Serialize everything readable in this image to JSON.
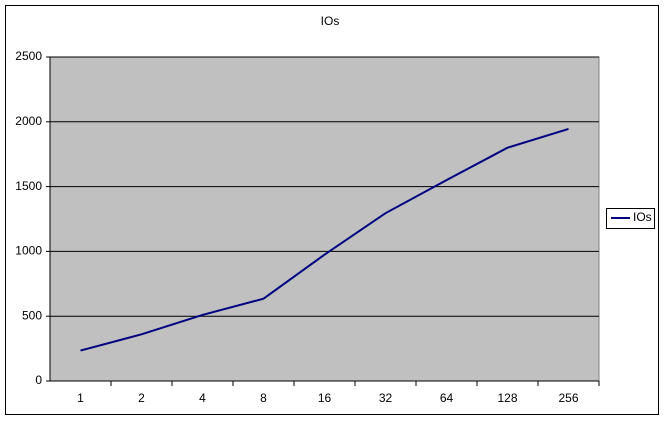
{
  "chart_data": {
    "type": "line",
    "title": "IOs",
    "categories": [
      "1",
      "2",
      "4",
      "8",
      "16",
      "32",
      "64",
      "128",
      "256"
    ],
    "series": [
      {
        "name": "IOs",
        "color": "#000080",
        "values": [
          235,
          360,
          510,
          635,
          975,
          1295,
          1550,
          1800,
          1945
        ]
      }
    ],
    "ylim": [
      0,
      2500
    ],
    "yticks": [
      0,
      500,
      1000,
      1500,
      2000,
      2500
    ],
    "grid": true,
    "plot_color": "#c0c0c0",
    "legend": "right"
  }
}
